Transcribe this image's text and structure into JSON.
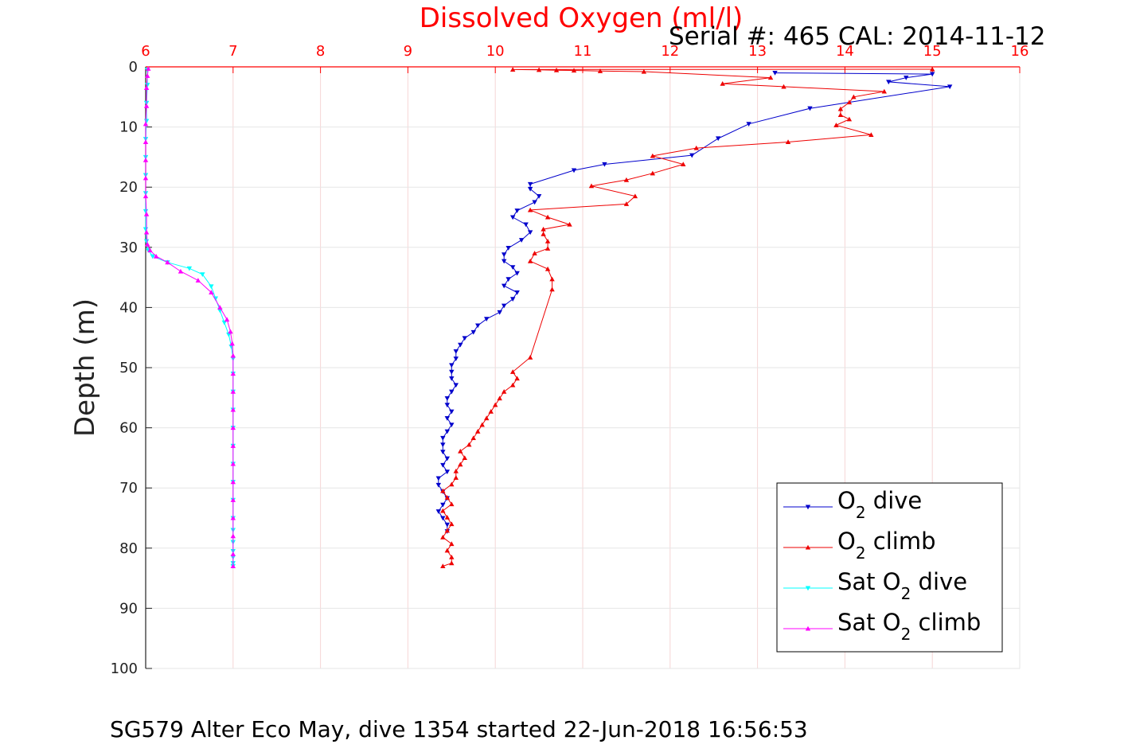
{
  "chart_data": {
    "type": "line",
    "title": "Dissolved Oxygen (ml/l)",
    "serial_text": "Serial #: 465  CAL: 2014-11-12",
    "ylabel": "Depth (m)",
    "footer": "SG579 Alter Eco May, dive 1354 started 22-Jun-2018 16:56:53",
    "xlim": [
      6,
      16
    ],
    "ylim": [
      0,
      100
    ],
    "y_reversed": true,
    "x_axis_position": "top",
    "grid": true,
    "legend_position": "bottom-right",
    "x_ticks": [
      "6",
      "7",
      "8",
      "9",
      "10",
      "11",
      "12",
      "13",
      "14",
      "15",
      "16"
    ],
    "y_ticks": [
      "0",
      "10",
      "20",
      "30",
      "40",
      "50",
      "60",
      "70",
      "80",
      "90",
      "100"
    ],
    "colors": {
      "title": "#ff0000",
      "top_axis": "#ff0000",
      "grid": "#e6e6e6",
      "o2_dive": "#0000cc",
      "o2_climb": "#ee0000",
      "sat_dive": "#00ffff",
      "sat_climb": "#ff00ff"
    },
    "series": [
      {
        "key": "o2_dive",
        "legend_main": "O",
        "legend_sub": "2",
        "legend_rest": " dive",
        "marker": "triangle-down",
        "x": [
          13.2,
          15.0,
          14.7,
          14.5,
          15.2,
          13.6,
          12.9,
          12.55,
          12.25,
          11.25,
          10.9,
          10.4,
          10.4,
          10.5,
          10.45,
          10.25,
          10.2,
          10.35,
          10.4,
          10.3,
          10.15,
          10.1,
          10.1,
          10.2,
          10.25,
          10.15,
          10.1,
          10.25,
          10.2,
          10.1,
          10.05,
          9.9,
          9.8,
          9.75,
          9.65,
          9.6,
          9.55,
          9.55,
          9.5,
          9.5,
          9.5,
          9.55,
          9.5,
          9.45,
          9.45,
          9.5,
          9.45,
          9.5,
          9.45,
          9.4,
          9.4,
          9.4,
          9.45,
          9.4,
          9.45,
          9.35,
          9.35,
          9.4,
          9.45,
          9.4,
          9.35,
          9.4,
          9.45,
          9.45
        ],
        "y": [
          1,
          1.2,
          1.8,
          2.5,
          3.3,
          6.9,
          9.5,
          11.9,
          14.7,
          16.2,
          17.2,
          19.5,
          20.3,
          21.5,
          22.5,
          23.9,
          25.0,
          26.2,
          27.5,
          28.8,
          30.1,
          31.2,
          32.3,
          33.3,
          34.3,
          35.3,
          36.4,
          37.5,
          38.6,
          39.7,
          40.8,
          41.9,
          43.0,
          44.1,
          45.1,
          46.2,
          47.3,
          48.5,
          49.6,
          50.7,
          51.8,
          52.9,
          54.0,
          55.1,
          56.2,
          57.3,
          58.4,
          59.5,
          60.6,
          61.7,
          62.8,
          64.0,
          65.1,
          66.2,
          67.3,
          68.4,
          69.5,
          70.6,
          71.7,
          72.8,
          73.9,
          75.0,
          76.1,
          77.2
        ]
      },
      {
        "key": "o2_climb",
        "legend_main": "O",
        "legend_sub": "2",
        "legend_rest": " climb",
        "marker": "triangle-up",
        "x": [
          9.4,
          9.5,
          9.5,
          9.45,
          9.5,
          9.4,
          9.45,
          9.5,
          9.45,
          9.4,
          9.5,
          9.45,
          9.4,
          9.5,
          9.55,
          9.55,
          9.6,
          9.65,
          9.6,
          9.7,
          9.75,
          9.8,
          9.85,
          9.9,
          9.95,
          10.0,
          10.05,
          10.1,
          10.2,
          10.25,
          10.2,
          10.4,
          10.65,
          10.65,
          10.6,
          10.4,
          10.45,
          10.6,
          10.6,
          10.55,
          10.55,
          10.85,
          10.6,
          10.4,
          11.5,
          11.6,
          11.1,
          11.5,
          11.8,
          12.15,
          11.8,
          12.3,
          13.35,
          14.3,
          13.9,
          14.05,
          13.95,
          13.95,
          14.05,
          14.1,
          14.45,
          13.3,
          12.6,
          13.15,
          11.7,
          11.2,
          10.9,
          10.7,
          10.5,
          10.2,
          15.0
        ],
        "y": [
          83.0,
          82.5,
          81.5,
          80.4,
          79.3,
          78.2,
          77.1,
          76.0,
          74.9,
          73.8,
          72.7,
          71.6,
          70.5,
          69.4,
          68.3,
          67.2,
          66.1,
          65.0,
          63.9,
          62.8,
          61.7,
          60.6,
          59.5,
          58.4,
          57.3,
          56.2,
          55.1,
          54.0,
          52.9,
          51.8,
          50.7,
          48.3,
          37.0,
          35.3,
          33.6,
          32.3,
          31.0,
          30.2,
          29.0,
          27.8,
          27.0,
          26.2,
          25.0,
          23.8,
          22.8,
          21.5,
          19.8,
          18.8,
          17.7,
          16.2,
          14.8,
          13.5,
          12.5,
          11.3,
          9.7,
          8.7,
          8.0,
          7.0,
          5.9,
          5.0,
          4.1,
          3.3,
          2.8,
          1.8,
          0.8,
          0.7,
          0.6,
          0.55,
          0.5,
          0.45,
          0.4
        ]
      },
      {
        "key": "sat_dive",
        "legend_main": "Sat O",
        "legend_sub": "2",
        "legend_rest": " dive",
        "marker": "triangle-down",
        "x": [
          6.02,
          6.02,
          6.01,
          6.01,
          6.0,
          6.0,
          6.0,
          6.0,
          6.0,
          6.0,
          6.01,
          6.03,
          6.08,
          6.25,
          6.5,
          6.65,
          6.75,
          6.8,
          6.85,
          6.9,
          6.95,
          6.98,
          7.0,
          7.0,
          7.0,
          7.0,
          7.0,
          7.0,
          7.0,
          7.0,
          7.0,
          7.0,
          7.0,
          7.0,
          7.0,
          7.0,
          7.0,
          7.0
        ],
        "y": [
          0.5,
          3,
          6,
          9,
          12,
          15,
          18,
          21,
          24,
          27,
          29,
          30.5,
          31.5,
          32.5,
          33.5,
          34.5,
          36.5,
          38.5,
          40.5,
          42.5,
          44.5,
          46.5,
          48.5,
          51,
          54,
          57,
          60,
          63,
          66,
          69,
          72,
          75,
          77,
          79,
          80.5,
          81.5,
          82.5,
          83
        ]
      },
      {
        "key": "sat_climb",
        "legend_main": "Sat O",
        "legend_sub": "2",
        "legend_rest": " climb",
        "marker": "triangle-up",
        "x": [
          7.0,
          7.0,
          7.0,
          7.0,
          7.0,
          7.0,
          7.0,
          7.0,
          7.0,
          7.0,
          7.0,
          7.0,
          7.0,
          6.99,
          6.97,
          6.93,
          6.85,
          6.75,
          6.6,
          6.4,
          6.25,
          6.12,
          6.05,
          6.02,
          6.01,
          6.01,
          6.0,
          6.0,
          6.0,
          6.0,
          6.0,
          6.01,
          6.01,
          6.02,
          6.03
        ],
        "y": [
          83,
          81,
          78,
          75,
          72,
          69,
          66,
          63,
          60,
          57,
          54,
          51,
          48,
          46,
          44,
          42,
          40,
          37.5,
          35.5,
          34,
          32.5,
          31.5,
          30.5,
          29.5,
          27.5,
          24.5,
          21.5,
          18.5,
          15.5,
          12.5,
          9.5,
          6.5,
          3.5,
          1.5,
          0.3
        ]
      }
    ]
  }
}
